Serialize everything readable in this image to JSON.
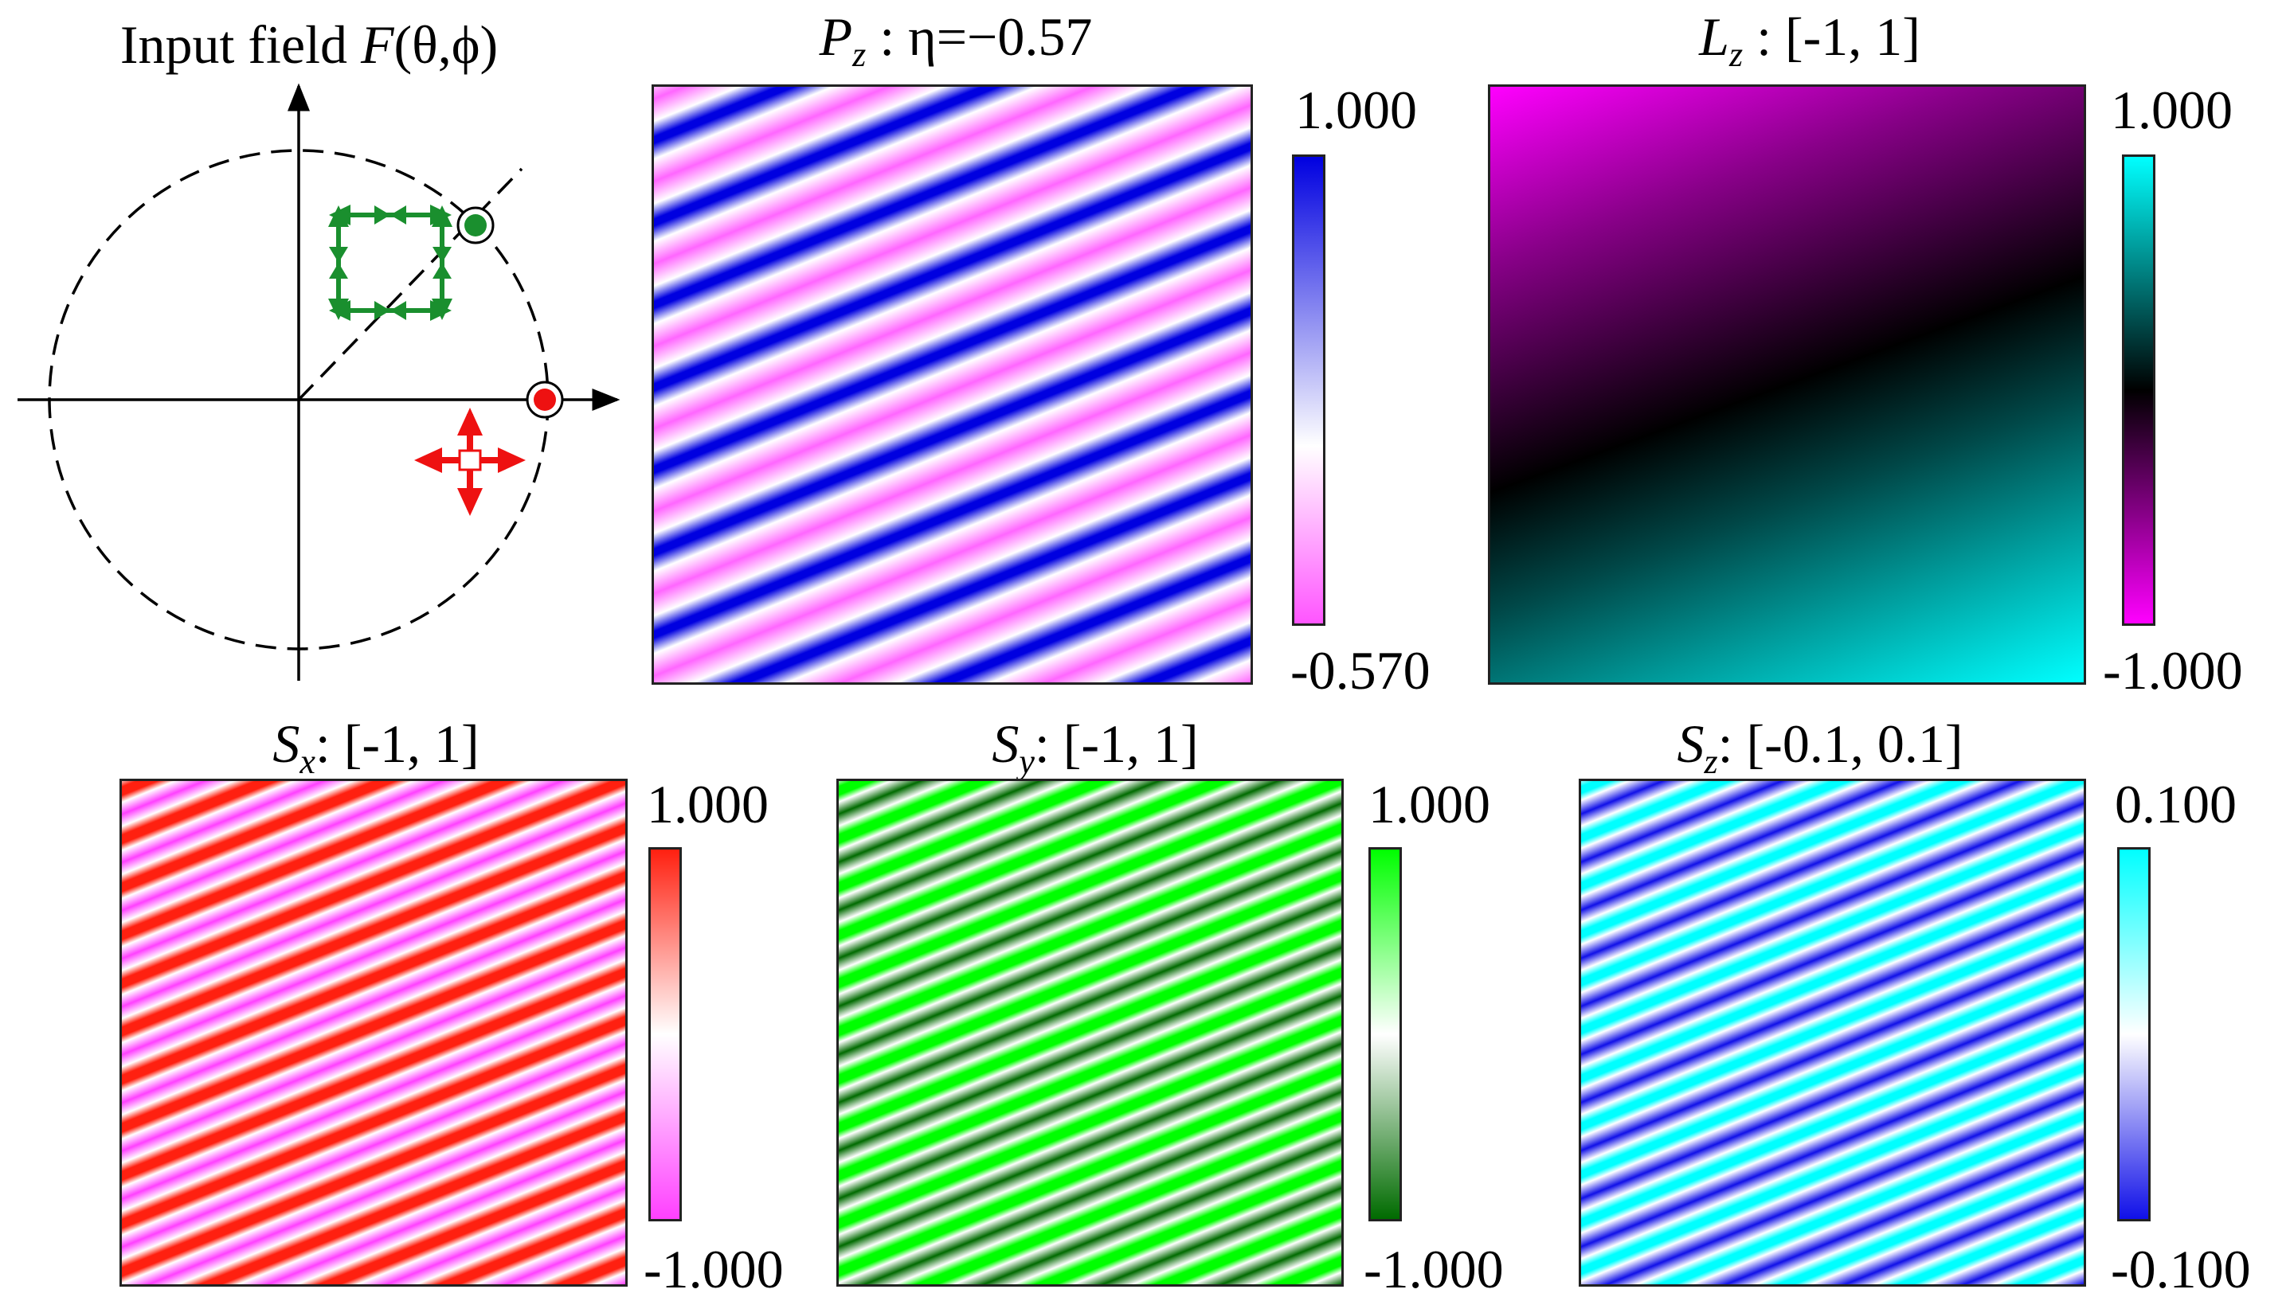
{
  "diagram": {
    "title_text": "Input field ",
    "title_symbol": "F",
    "title_args": "(θ,ϕ)"
  },
  "panels": [
    {
      "id": "pz",
      "symbol": "P",
      "subscript": "z",
      "title_rest": " : η=−0.57",
      "cbar_max": "1.000",
      "cbar_min": "-0.570",
      "colors": {
        "max": "#0000e0",
        "mid": "#ffffff",
        "min": "#ff55ff"
      }
    },
    {
      "id": "lz",
      "symbol": "L",
      "subscript": "z",
      "title_rest": " :  [-1, 1]",
      "cbar_max": "1.000",
      "cbar_min": "-1.000",
      "colors": {
        "max": "#00ffff",
        "mid": "#000000",
        "min": "#ff00ff"
      }
    },
    {
      "id": "sx",
      "symbol": "S",
      "subscript": "x",
      "title_rest": ": [-1, 1]",
      "cbar_max": "1.000",
      "cbar_min": "-1.000",
      "colors": {
        "max": "#ff2010",
        "mid": "#ffffff",
        "min": "#ff40ff"
      }
    },
    {
      "id": "sy",
      "symbol": "S",
      "subscript": "y",
      "title_rest": ": [-1, 1]",
      "cbar_max": "1.000",
      "cbar_min": "-1.000",
      "colors": {
        "max": "#00ff00",
        "mid": "#ffffff",
        "min": "#006b00"
      }
    },
    {
      "id": "sz",
      "symbol": "S",
      "subscript": "z",
      "title_rest": ": [-0.1, 0.1]",
      "cbar_max": "0.100",
      "cbar_min": "-0.100",
      "colors": {
        "max": "#00ffff",
        "mid": "#ffffff",
        "min": "#1010e8"
      }
    }
  ],
  "marker_colors": {
    "green": "#1a8f2e",
    "red": "#ee1111"
  }
}
